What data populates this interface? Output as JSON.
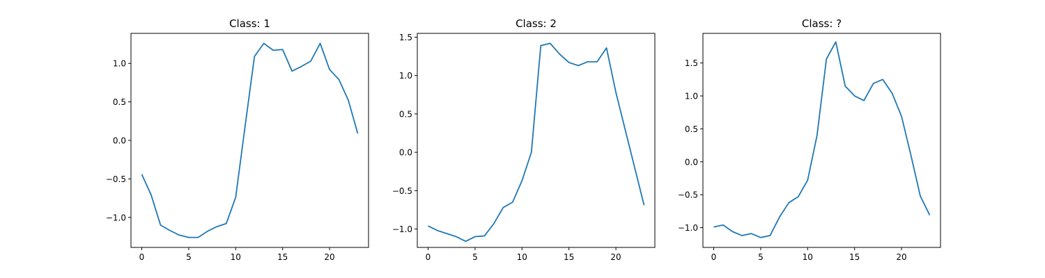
{
  "chart_data": [
    {
      "type": "line",
      "title": "Class: 1",
      "xlabel": "",
      "ylabel": "",
      "xlim": [
        -1.15,
        24.15
      ],
      "ylim": [
        -1.39,
        1.39
      ],
      "xticks": [
        0,
        5,
        10,
        15,
        20
      ],
      "yticks": [
        -1.0,
        -0.5,
        0.0,
        0.5,
        1.0
      ],
      "ytick_labels": [
        "−1.0",
        "−0.5",
        "0.0",
        "0.5",
        "1.0"
      ],
      "grid": false,
      "series": [
        {
          "color": "#1f77b4",
          "x": [
            0,
            1,
            2,
            3,
            4,
            5,
            6,
            7,
            8,
            9,
            10,
            11,
            12,
            13,
            14,
            15,
            16,
            17,
            18,
            19,
            20,
            21,
            22,
            23
          ],
          "values": [
            -0.44,
            -0.71,
            -1.1,
            -1.17,
            -1.23,
            -1.26,
            -1.26,
            -1.18,
            -1.12,
            -1.08,
            -0.74,
            0.18,
            1.09,
            1.26,
            1.17,
            1.18,
            0.9,
            0.96,
            1.03,
            1.26,
            0.92,
            0.79,
            0.52,
            0.09
          ]
        }
      ]
    },
    {
      "type": "line",
      "title": "Class: 2",
      "xlabel": "",
      "ylabel": "",
      "xlim": [
        -1.15,
        24.15
      ],
      "ylim": [
        -1.24,
        1.55
      ],
      "xticks": [
        0,
        5,
        10,
        15,
        20
      ],
      "yticks": [
        -1.0,
        -0.5,
        0.0,
        0.5,
        1.0,
        1.5
      ],
      "ytick_labels": [
        "−1.0",
        "−0.5",
        "0.0",
        "0.5",
        "1.0",
        "1.5"
      ],
      "grid": false,
      "series": [
        {
          "color": "#1f77b4",
          "x": [
            0,
            1,
            2,
            3,
            4,
            5,
            6,
            7,
            8,
            9,
            10,
            11,
            12,
            13,
            14,
            15,
            16,
            17,
            18,
            19,
            20,
            21,
            22,
            23
          ],
          "values": [
            -0.96,
            -1.02,
            -1.06,
            -1.1,
            -1.16,
            -1.1,
            -1.09,
            -0.93,
            -0.72,
            -0.65,
            -0.37,
            0.0,
            1.39,
            1.42,
            1.28,
            1.17,
            1.13,
            1.18,
            1.18,
            1.36,
            0.78,
            0.29,
            -0.2,
            -0.69
          ]
        }
      ]
    },
    {
      "type": "line",
      "title": "Class: ?",
      "xlabel": "",
      "ylabel": "",
      "xlim": [
        -1.15,
        24.15
      ],
      "ylim": [
        -1.3,
        1.95
      ],
      "xticks": [
        0,
        5,
        10,
        15,
        20
      ],
      "yticks": [
        -1.0,
        -0.5,
        0.0,
        0.5,
        1.0,
        1.5
      ],
      "ytick_labels": [
        "−1.0",
        "−0.5",
        "0.0",
        "0.5",
        "1.0",
        "1.5"
      ],
      "grid": false,
      "series": [
        {
          "color": "#1f77b4",
          "x": [
            0,
            1,
            2,
            3,
            4,
            5,
            6,
            7,
            8,
            9,
            10,
            11,
            12,
            13,
            14,
            15,
            16,
            17,
            18,
            19,
            20,
            21,
            22,
            23
          ],
          "values": [
            -0.99,
            -0.96,
            -1.06,
            -1.12,
            -1.09,
            -1.15,
            -1.12,
            -0.84,
            -0.62,
            -0.53,
            -0.28,
            0.4,
            1.56,
            1.82,
            1.15,
            1.0,
            0.93,
            1.19,
            1.25,
            1.04,
            0.69,
            0.1,
            -0.52,
            -0.81
          ]
        }
      ]
    }
  ]
}
